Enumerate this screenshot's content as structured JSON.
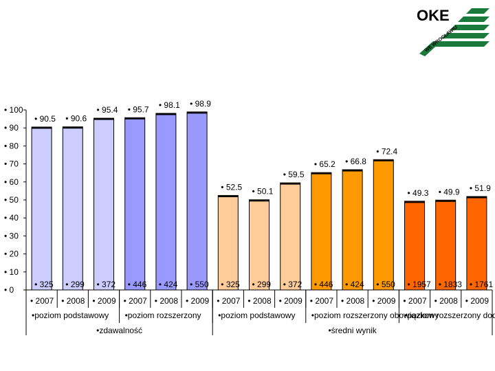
{
  "logo": {
    "text": "OKE",
    "subtext": "WE WROCŁAWIU",
    "color": "#1a7a3c"
  },
  "chart_data": {
    "type": "bar",
    "ylim": [
      0,
      100
    ],
    "yticks": [
      0,
      10,
      20,
      30,
      40,
      50,
      60,
      70,
      80,
      90,
      100
    ],
    "grid": false,
    "bars": [
      {
        "year": "2007",
        "value": 90.5,
        "count": "325",
        "color": "#ccccff"
      },
      {
        "year": "2008",
        "value": 90.6,
        "count": "299",
        "color": "#ccccff"
      },
      {
        "year": "2009",
        "value": 95.4,
        "count": "372",
        "color": "#ccccff"
      },
      {
        "year": "2007",
        "value": 95.7,
        "count": "446",
        "color": "#9999ff"
      },
      {
        "year": "2008",
        "value": 98.1,
        "count": "424",
        "color": "#9999ff"
      },
      {
        "year": "2009",
        "value": 98.9,
        "count": "550",
        "color": "#9999ff"
      },
      {
        "year": "2007",
        "value": 52.5,
        "count": "325",
        "color": "#ffcc99"
      },
      {
        "year": "2008",
        "value": 50.1,
        "count": "299",
        "color": "#ffcc99"
      },
      {
        "year": "2009",
        "value": 59.5,
        "count": "372",
        "color": "#ffcc99"
      },
      {
        "year": "2007",
        "value": 65.2,
        "count": "446",
        "color": "#ff9900"
      },
      {
        "year": "2008",
        "value": 66.8,
        "count": "424",
        "color": "#ff9900"
      },
      {
        "year": "2009",
        "value": 72.4,
        "count": "550",
        "color": "#ff9900"
      },
      {
        "year": "2007",
        "value": 49.3,
        "count": "1957",
        "color": "#ff6600"
      },
      {
        "year": "2008",
        "value": 49.9,
        "count": "1833",
        "color": "#ff6600"
      },
      {
        "year": "2009",
        "value": 51.9,
        "count": "1761",
        "color": "#ff6600"
      }
    ],
    "level_groups": [
      {
        "label": "poziom podstawowy",
        "start": 0,
        "end": 2
      },
      {
        "label": "poziom rozszerzony",
        "start": 3,
        "end": 5
      },
      {
        "label": "poziom podstawowy",
        "start": 6,
        "end": 8
      },
      {
        "label": "poziom rozszerzony obowiązkowy",
        "start": 9,
        "end": 11
      },
      {
        "label": "poziom rozszerzony dodatkowy",
        "start": 12,
        "end": 14
      }
    ],
    "measure_groups": [
      {
        "label": "zdawalność",
        "start": 0,
        "end": 5
      },
      {
        "label": "średni wynik",
        "start": 6,
        "end": 14
      }
    ]
  }
}
